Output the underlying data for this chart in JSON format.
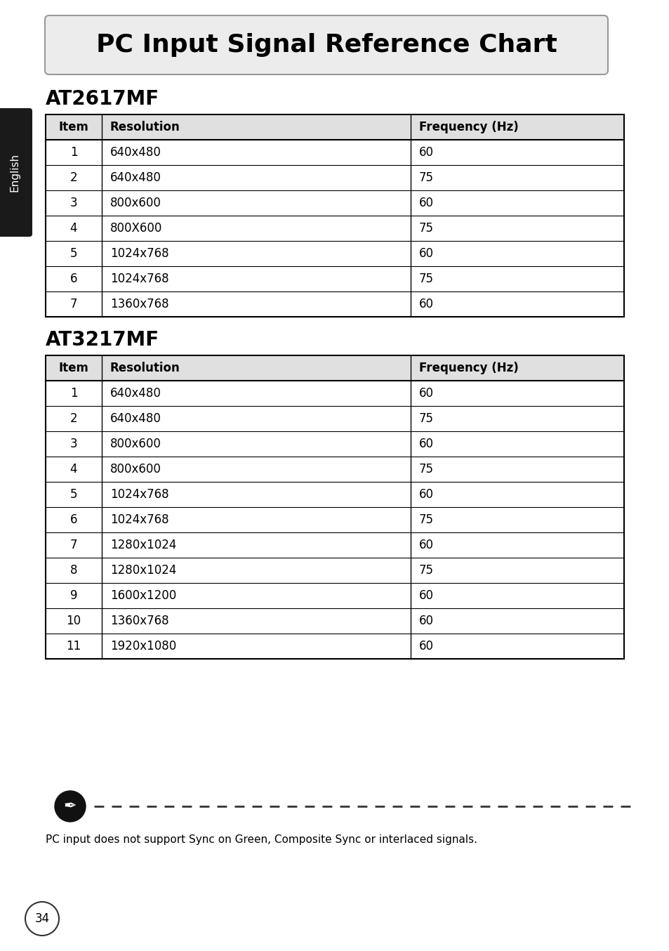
{
  "title": "PC Input Signal Reference Chart",
  "bg_color": "#ffffff",
  "page_number": "34",
  "side_label": "English",
  "note_text": "PC input does not support Sync on Green, Composite Sync or interlaced signals.",
  "table1_title": "AT2617MF",
  "table1_headers": [
    "Item",
    "Resolution",
    "Frequency (Hz)"
  ],
  "table1_rows": [
    [
      "1",
      "640x480",
      "60"
    ],
    [
      "2",
      "640x480",
      "75"
    ],
    [
      "3",
      "800x600",
      "60"
    ],
    [
      "4",
      "800X600",
      "75"
    ],
    [
      "5",
      "1024x768",
      "60"
    ],
    [
      "6",
      "1024x768",
      "75"
    ],
    [
      "7",
      "1360x768",
      "60"
    ]
  ],
  "table2_title": "AT3217MF",
  "table2_headers": [
    "Item",
    "Resolution",
    "Frequency (Hz)"
  ],
  "table2_rows": [
    [
      "1",
      "640x480",
      "60"
    ],
    [
      "2",
      "640x480",
      "75"
    ],
    [
      "3",
      "800x600",
      "60"
    ],
    [
      "4",
      "800x600",
      "75"
    ],
    [
      "5",
      "1024x768",
      "60"
    ],
    [
      "6",
      "1024x768",
      "75"
    ],
    [
      "7",
      "1280x1024",
      "60"
    ],
    [
      "8",
      "1280x1024",
      "75"
    ],
    [
      "9",
      "1600x1200",
      "60"
    ],
    [
      "10",
      "1360x768",
      "60"
    ],
    [
      "11",
      "1920x1080",
      "60"
    ]
  ],
  "border_color": "#000000",
  "text_color": "#000000",
  "title_font_size": 26,
  "section_font_size": 20,
  "table_font_size": 12,
  "header_font_size": 12,
  "side_bg": "#1a1a1a",
  "side_text_color": "#ffffff",
  "header_bg": "#e0e0e0",
  "title_box_bg": "#ececec",
  "title_box_edge": "#999999"
}
